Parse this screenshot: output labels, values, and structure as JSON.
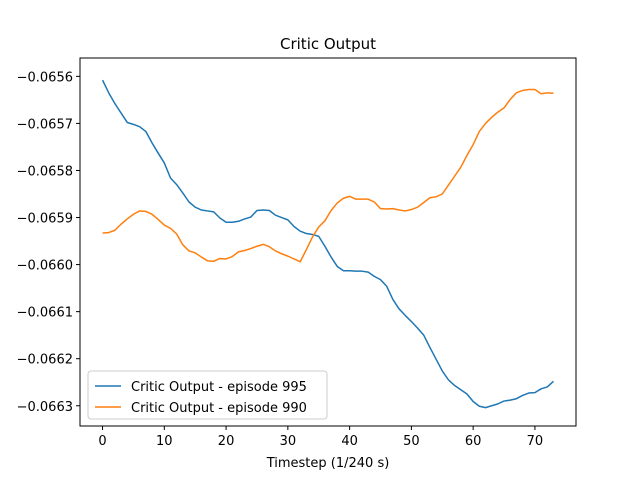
{
  "chart_data": {
    "type": "line",
    "title": "Critic Output",
    "xlabel": "Timestep (1/240 s)",
    "ylabel": "",
    "xlim": [
      -3.65,
      76.65
    ],
    "ylim": [
      -0.066343,
      -0.065561
    ],
    "xticks": [
      0,
      10,
      20,
      30,
      40,
      50,
      60,
      70
    ],
    "yticks": [
      -0.0663,
      -0.0662,
      -0.0661,
      -0.066,
      -0.0659,
      -0.0658,
      -0.0657,
      -0.0656
    ],
    "ytick_labels": [
      "−0.0663",
      "−0.0662",
      "−0.0661",
      "−0.0660",
      "−0.0659",
      "−0.0658",
      "−0.0657",
      "−0.0656"
    ],
    "grid": false,
    "legend_position": "lower-left",
    "series": [
      {
        "name": "Critic Output - episode 995",
        "color": "#1f77b4",
        "x": [
          0,
          1,
          2,
          3,
          4,
          5,
          6,
          7,
          8,
          9,
          10,
          11,
          12,
          13,
          14,
          15,
          16,
          17,
          18,
          19,
          20,
          21,
          22,
          23,
          24,
          25,
          26,
          27,
          28,
          29,
          30,
          31,
          32,
          33,
          34,
          35,
          36,
          37,
          38,
          39,
          40,
          41,
          42,
          43,
          44,
          45,
          46,
          47,
          48,
          49,
          50,
          51,
          52,
          53,
          54,
          55,
          56,
          57,
          58,
          59,
          60,
          61,
          62,
          63,
          64,
          65,
          66,
          67,
          68,
          69,
          70,
          71,
          72,
          73
        ],
        "values": [
          -0.065608,
          -0.065635,
          -0.065658,
          -0.065678,
          -0.065698,
          -0.065702,
          -0.065707,
          -0.065717,
          -0.065741,
          -0.065763,
          -0.065784,
          -0.065816,
          -0.06583,
          -0.065848,
          -0.065867,
          -0.065878,
          -0.065884,
          -0.065886,
          -0.065888,
          -0.065901,
          -0.06591,
          -0.06591,
          -0.065908,
          -0.065903,
          -0.065899,
          -0.065885,
          -0.065884,
          -0.065885,
          -0.065895,
          -0.0659,
          -0.065905,
          -0.065919,
          -0.065929,
          -0.065934,
          -0.065936,
          -0.06594,
          -0.065961,
          -0.065984,
          -0.066004,
          -0.066013,
          -0.066013,
          -0.066014,
          -0.066014,
          -0.066016,
          -0.066025,
          -0.066032,
          -0.066046,
          -0.066074,
          -0.066094,
          -0.066108,
          -0.066121,
          -0.066135,
          -0.06615,
          -0.066176,
          -0.066201,
          -0.066226,
          -0.066245,
          -0.066257,
          -0.066266,
          -0.066275,
          -0.066291,
          -0.066301,
          -0.066304,
          -0.0663,
          -0.066296,
          -0.06629,
          -0.066288,
          -0.066285,
          -0.066278,
          -0.066273,
          -0.066272,
          -0.066264,
          -0.06626,
          -0.066248
        ]
      },
      {
        "name": "Critic Output - episode 990",
        "color": "#ff7f0e",
        "x": [
          0,
          1,
          2,
          3,
          4,
          5,
          6,
          7,
          8,
          9,
          10,
          11,
          12,
          13,
          14,
          15,
          16,
          17,
          18,
          19,
          20,
          21,
          22,
          23,
          24,
          25,
          26,
          27,
          28,
          29,
          30,
          31,
          32,
          33,
          34,
          35,
          36,
          37,
          38,
          39,
          40,
          41,
          42,
          43,
          44,
          45,
          46,
          47,
          48,
          49,
          50,
          51,
          52,
          53,
          54,
          55,
          56,
          57,
          58,
          59,
          60,
          61,
          62,
          63,
          64,
          65,
          66,
          67,
          68,
          69,
          70,
          71,
          72,
          73
        ],
        "values": [
          -0.065933,
          -0.065932,
          -0.065927,
          -0.065914,
          -0.065903,
          -0.065893,
          -0.065886,
          -0.065887,
          -0.065893,
          -0.065904,
          -0.065916,
          -0.065923,
          -0.065935,
          -0.065958,
          -0.065971,
          -0.065975,
          -0.065984,
          -0.065992,
          -0.065993,
          -0.065987,
          -0.065988,
          -0.065983,
          -0.065973,
          -0.06597,
          -0.065966,
          -0.065961,
          -0.065957,
          -0.065962,
          -0.065971,
          -0.065977,
          -0.065982,
          -0.065988,
          -0.065994,
          -0.065968,
          -0.065941,
          -0.06592,
          -0.065907,
          -0.065885,
          -0.065869,
          -0.065859,
          -0.065855,
          -0.065861,
          -0.065861,
          -0.065861,
          -0.065867,
          -0.065881,
          -0.065882,
          -0.065881,
          -0.065884,
          -0.065886,
          -0.065883,
          -0.065878,
          -0.065868,
          -0.065858,
          -0.065856,
          -0.06585,
          -0.065831,
          -0.065812,
          -0.065793,
          -0.065768,
          -0.065745,
          -0.065717,
          -0.0657,
          -0.065687,
          -0.065676,
          -0.065667,
          -0.065649,
          -0.065635,
          -0.06563,
          -0.065628,
          -0.065628,
          -0.065637,
          -0.065635,
          -0.065636
        ]
      }
    ]
  }
}
